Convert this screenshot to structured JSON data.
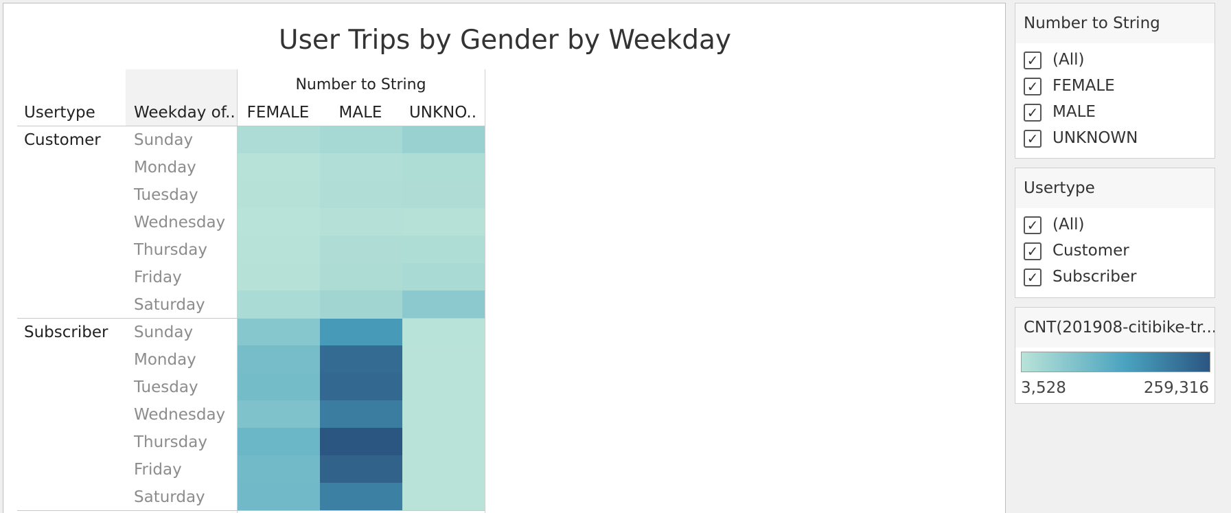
{
  "viz": {
    "title": "User Trips by Gender by Weekday",
    "column_dimension": "Number to String",
    "row_header_usertype": "Usertype",
    "row_header_weekday": "Weekday of..",
    "columns": [
      "FEMALE",
      "MALE",
      "UNKNO.."
    ],
    "weekdays": [
      "Sunday",
      "Monday",
      "Tuesday",
      "Wednesday",
      "Thursday",
      "Friday",
      "Saturday"
    ],
    "groups": [
      "Customer",
      "Subscriber"
    ]
  },
  "chart_data": {
    "type": "heatmap",
    "title": "User Trips by Gender by Weekday",
    "x_dimension": "Number to String",
    "categories": [
      "FEMALE",
      "MALE",
      "UNKNO.."
    ],
    "color_scale": {
      "min": 3528,
      "max": 259316,
      "min_color": "#b9e3d8",
      "mid_color": "#4aa3bf",
      "max_color": "#2b5681"
    },
    "rows": [
      {
        "usertype": "Customer",
        "weekday": "Sunday",
        "values": [
          18000,
          25000,
          40000
        ]
      },
      {
        "usertype": "Customer",
        "weekday": "Monday",
        "values": [
          6000,
          13000,
          16000
        ]
      },
      {
        "usertype": "Customer",
        "weekday": "Tuesday",
        "values": [
          7000,
          14000,
          15000
        ]
      },
      {
        "usertype": "Customer",
        "weekday": "Wednesday",
        "values": [
          4500,
          9000,
          7000
        ]
      },
      {
        "usertype": "Customer",
        "weekday": "Thursday",
        "values": [
          6000,
          15000,
          16000
        ]
      },
      {
        "usertype": "Customer",
        "weekday": "Friday",
        "values": [
          8000,
          17000,
          22000
        ]
      },
      {
        "usertype": "Customer",
        "weekday": "Saturday",
        "values": [
          20000,
          32000,
          55000
        ]
      },
      {
        "usertype": "Subscriber",
        "weekday": "Sunday",
        "values": [
          62000,
          145000,
          4200
        ]
      },
      {
        "usertype": "Subscriber",
        "weekday": "Monday",
        "values": [
          80000,
          225000,
          3528
        ]
      },
      {
        "usertype": "Subscriber",
        "weekday": "Tuesday",
        "values": [
          82000,
          228000,
          3700
        ]
      },
      {
        "usertype": "Subscriber",
        "weekday": "Wednesday",
        "values": [
          70000,
          195000,
          3900
        ]
      },
      {
        "usertype": "Subscriber",
        "weekday": "Thursday",
        "values": [
          92000,
          259316,
          3800
        ]
      },
      {
        "usertype": "Subscriber",
        "weekday": "Friday",
        "values": [
          85000,
          240000,
          3700
        ]
      },
      {
        "usertype": "Subscriber",
        "weekday": "Saturday",
        "values": [
          87000,
          190000,
          4000
        ]
      }
    ]
  },
  "filters": {
    "gender": {
      "title": "Number to String",
      "items": [
        {
          "label": "(All)",
          "checked": true
        },
        {
          "label": "FEMALE",
          "checked": true
        },
        {
          "label": "MALE",
          "checked": true
        },
        {
          "label": "UNKNOWN",
          "checked": true
        }
      ]
    },
    "usertype": {
      "title": "Usertype",
      "items": [
        {
          "label": "(All)",
          "checked": true
        },
        {
          "label": "Customer",
          "checked": true
        },
        {
          "label": "Subscriber",
          "checked": true
        }
      ]
    }
  },
  "legend": {
    "title": "CNT(201908-citibike-tr...",
    "min_label": "3,528",
    "max_label": "259,316"
  },
  "checkmark_glyph": "✓"
}
